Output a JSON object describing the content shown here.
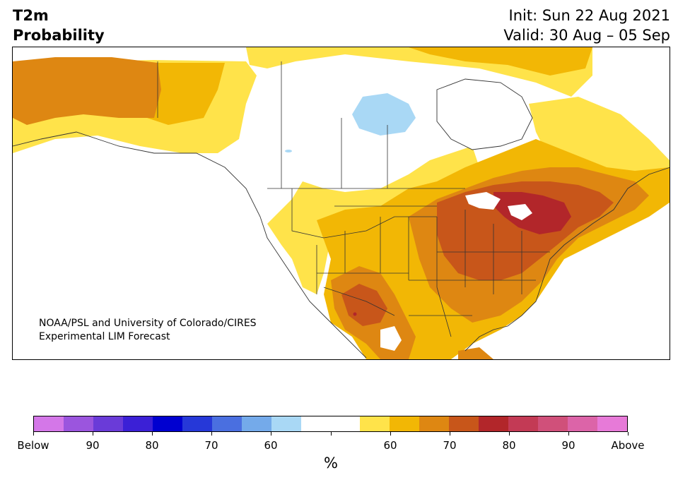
{
  "title": {
    "left_line1": "T2m",
    "left_line2": "Probability",
    "right_line1": "Init: Sun 22 Aug 2021",
    "right_line2": "Valid: 30 Aug – 05 Sep"
  },
  "credit": {
    "line1": "NOAA/PSL and University of Colorado/CIRES",
    "line2": "Experimental LIM Forecast"
  },
  "legend": {
    "unit": "%",
    "labels": [
      "Below",
      "90",
      "80",
      "70",
      "60",
      "",
      "60",
      "70",
      "80",
      "90",
      "Above"
    ],
    "colors": [
      "#d477e8",
      "#9b55de",
      "#6a3bd8",
      "#3b20d6",
      "#0000d0",
      "#2638d8",
      "#4a6fe0",
      "#74aaea",
      "#a9d8f5",
      "#ffffff",
      "#ffffff",
      "#ffe34a",
      "#f2b705",
      "#de8712",
      "#c8561a",
      "#b2262a",
      "#c33a55",
      "#d0507a",
      "#dc64a8",
      "#e77ad8"
    ]
  },
  "map_regions": {
    "alaska_yukon": "probability above, 70%",
    "western_canada": "probability above, 60%",
    "hudson_bay_nw": "probability below, 60%",
    "great_lakes_ne": "probability above, 80%",
    "eastern_us": "probability above, 70-80%",
    "mexico_north": "probability above, 70-80%"
  }
}
